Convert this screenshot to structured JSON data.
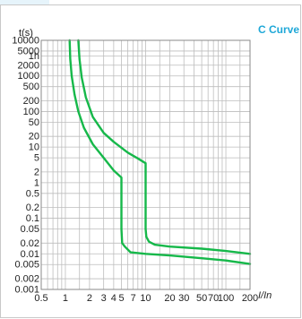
{
  "chart_data": {
    "type": "line",
    "title": "C Curve",
    "ylabel": "t(s)",
    "xlabel": "I/In",
    "x_scale": "log",
    "y_scale": "log",
    "xlim": [
      0.5,
      200
    ],
    "ylim": [
      0.001,
      10000
    ],
    "grid": true,
    "colors": {
      "title": "#1fa8d8",
      "curve": "#16b84a",
      "grid": "#bdbdbd",
      "frame": "#8a8a8a",
      "top_tab": "#e6f4fb"
    },
    "yticks": [
      {
        "value": 10000,
        "label": "10000"
      },
      {
        "value": 5000,
        "label": "5000"
      },
      {
        "value": 3600,
        "label": "1h"
      },
      {
        "value": 2000,
        "label": "2000"
      },
      {
        "value": 1000,
        "label": "1000"
      },
      {
        "value": 500,
        "label": "500"
      },
      {
        "value": 200,
        "label": "200"
      },
      {
        "value": 100,
        "label": "100"
      },
      {
        "value": 50,
        "label": "50"
      },
      {
        "value": 20,
        "label": "20"
      },
      {
        "value": 10,
        "label": "10"
      },
      {
        "value": 5,
        "label": "5"
      },
      {
        "value": 2,
        "label": "2"
      },
      {
        "value": 1,
        "label": "1"
      },
      {
        "value": 0.5,
        "label": "0.5"
      },
      {
        "value": 0.2,
        "label": "0.2"
      },
      {
        "value": 0.1,
        "label": "0.1"
      },
      {
        "value": 0.05,
        "label": "0.05"
      },
      {
        "value": 0.02,
        "label": "0.02"
      },
      {
        "value": 0.01,
        "label": "0.01"
      },
      {
        "value": 0.005,
        "label": "0.005"
      },
      {
        "value": 0.002,
        "label": "0.002"
      },
      {
        "value": 0.001,
        "label": "0.001"
      }
    ],
    "xticks": [
      {
        "value": 0.5,
        "label": "0.5"
      },
      {
        "value": 1,
        "label": "1"
      },
      {
        "value": 2,
        "label": "2"
      },
      {
        "value": 3,
        "label": "3"
      },
      {
        "value": 4,
        "label": "4"
      },
      {
        "value": 5,
        "label": "5"
      },
      {
        "value": 7,
        "label": "7"
      },
      {
        "value": 10,
        "label": "10"
      },
      {
        "value": 20,
        "label": "20"
      },
      {
        "value": 30,
        "label": "30"
      },
      {
        "value": 50,
        "label": "50"
      },
      {
        "value": 70,
        "label": "70"
      },
      {
        "value": 100,
        "label": "100"
      },
      {
        "value": 200,
        "label": "200"
      }
    ],
    "extra_gridlines_x": [
      0.6,
      0.7,
      0.8,
      0.9,
      1.5,
      6,
      8,
      9,
      15,
      40,
      60,
      80,
      90,
      150
    ],
    "series": [
      {
        "x": [
          1.13,
          1.15,
          1.2,
          1.3,
          1.45,
          1.7,
          2.2,
          3.0,
          4.0,
          5.0,
          5.0,
          5.1,
          5.5,
          6.5,
          10,
          20,
          50,
          100,
          200
        ],
        "y": [
          10000,
          3000,
          1000,
          300,
          100,
          35,
          12,
          5,
          2.2,
          1.4,
          0.05,
          0.02,
          0.016,
          0.011,
          0.01,
          0.009,
          0.0075,
          0.0065,
          0.0052
        ]
      },
      {
        "x": [
          1.45,
          1.5,
          1.6,
          1.8,
          2.2,
          3.0,
          4.0,
          6.0,
          8.0,
          10,
          10,
          10.2,
          11,
          13,
          20,
          50,
          100,
          200
        ],
        "y": [
          10000,
          3000,
          900,
          250,
          70,
          25,
          14,
          7,
          4.8,
          3.5,
          0.05,
          0.03,
          0.022,
          0.018,
          0.016,
          0.014,
          0.012,
          0.01
        ]
      }
    ]
  }
}
